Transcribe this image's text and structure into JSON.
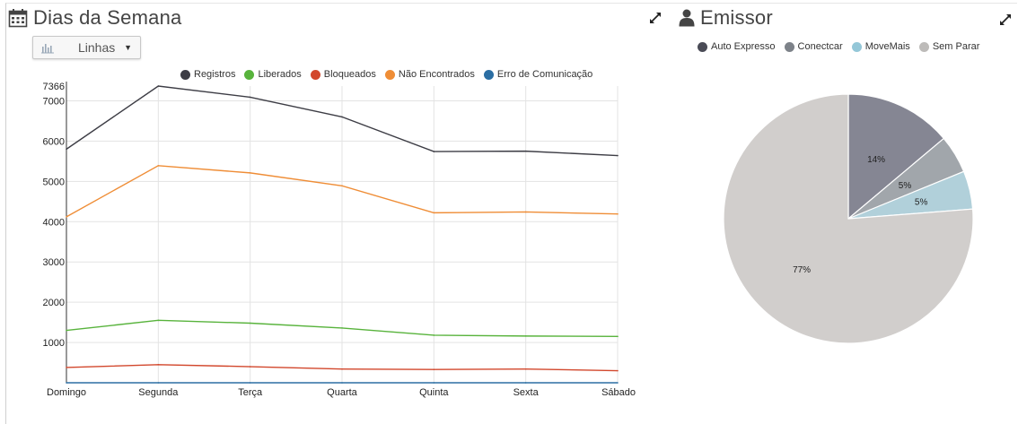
{
  "left_panel": {
    "title": "Dias da Semana",
    "title_icon": "calendar-icon",
    "expand_icon": "expand-icon",
    "chart_type_select": {
      "value": "Linhas",
      "icon": "bar-chart-icon"
    }
  },
  "right_panel": {
    "title": "Emissor",
    "title_icon": "user-icon",
    "expand_icon": "expand-icon"
  },
  "chart_data": [
    {
      "type": "line",
      "categories": [
        "Domingo",
        "Segunda",
        "Terça",
        "Quarta",
        "Quinta",
        "Sexta",
        "Sábado"
      ],
      "series": [
        {
          "name": "Registros",
          "color": "#3d3d45",
          "values": [
            5800,
            7366,
            7090,
            6600,
            5740,
            5750,
            5640
          ]
        },
        {
          "name": "Liberados",
          "color": "#58b33c",
          "values": [
            1300,
            1550,
            1480,
            1360,
            1180,
            1160,
            1150
          ]
        },
        {
          "name": "Bloqueados",
          "color": "#d2472c",
          "values": [
            380,
            450,
            400,
            340,
            330,
            340,
            300
          ]
        },
        {
          "name": "Não Encontrados",
          "color": "#ef8d36",
          "values": [
            4120,
            5390,
            5210,
            4890,
            4220,
            4240,
            4190
          ]
        },
        {
          "name": "Erro de Comunicação",
          "color": "#2b6ea3",
          "values": [
            0,
            0,
            0,
            0,
            0,
            0,
            0
          ]
        }
      ],
      "yticks": [
        1000,
        2000,
        3000,
        4000,
        5000,
        6000,
        7000,
        7366
      ],
      "ylim": [
        0,
        7366
      ],
      "grid": true,
      "legend": "top"
    },
    {
      "type": "pie",
      "slices": [
        {
          "label": "Auto Expresso",
          "value": 14,
          "display": "14%",
          "color": "#858693"
        },
        {
          "label": "Conectcar",
          "value": 5,
          "display": "5%",
          "color": "#a1a6ab"
        },
        {
          "label": "MoveMais",
          "value": 5,
          "display": "5%",
          "color": "#b1d0da"
        },
        {
          "label": "Sem Parar",
          "value": 77,
          "display": "77%",
          "color": "#d1cecc"
        }
      ],
      "legend": "top",
      "legend_colors": [
        "#4a4b56",
        "#7d8289",
        "#94c7d8",
        "#bdbbb9"
      ]
    }
  ]
}
